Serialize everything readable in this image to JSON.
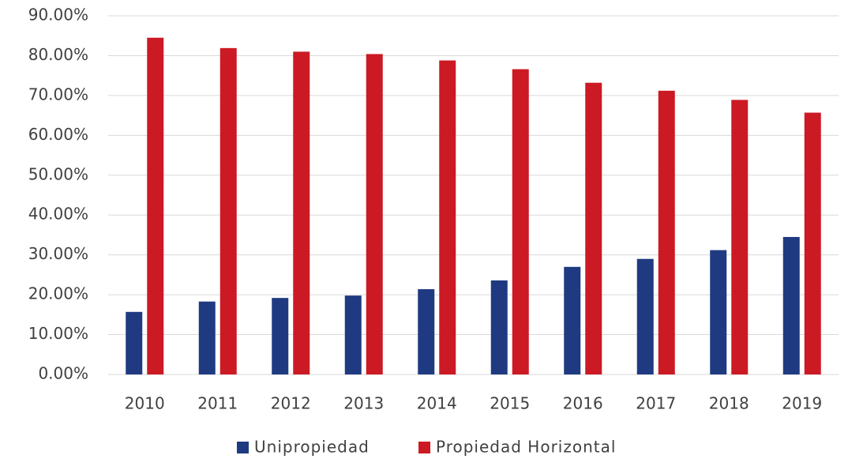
{
  "chart_data": {
    "type": "bar",
    "categories": [
      "2010",
      "2011",
      "2012",
      "2013",
      "2014",
      "2015",
      "2016",
      "2017",
      "2018",
      "2019"
    ],
    "series": [
      {
        "name": "Unipropiedad",
        "color": "#1f3a80",
        "values": [
          15.7,
          18.3,
          19.2,
          19.8,
          21.4,
          23.6,
          27.0,
          29.0,
          31.2,
          34.5
        ]
      },
      {
        "name": "Propiedad Horizontal",
        "color": "#cc1a24",
        "values": [
          84.5,
          81.9,
          81.0,
          80.4,
          78.8,
          76.6,
          73.2,
          71.2,
          68.9,
          65.7
        ]
      }
    ],
    "ylim": [
      0,
      90
    ],
    "yticks": [
      {
        "value": 0,
        "label": "0.00%"
      },
      {
        "value": 10,
        "label": "10.00%"
      },
      {
        "value": 20,
        "label": "20.00%"
      },
      {
        "value": 30,
        "label": "30.00%"
      },
      {
        "value": 40,
        "label": "40.00%"
      },
      {
        "value": 50,
        "label": "50.00%"
      },
      {
        "value": 60,
        "label": "60.00%"
      },
      {
        "value": 70,
        "label": "70.00%"
      },
      {
        "value": 80,
        "label": "80.00%"
      },
      {
        "value": 90,
        "label": "90.00%"
      }
    ],
    "grid": true,
    "legend": "bottom"
  }
}
